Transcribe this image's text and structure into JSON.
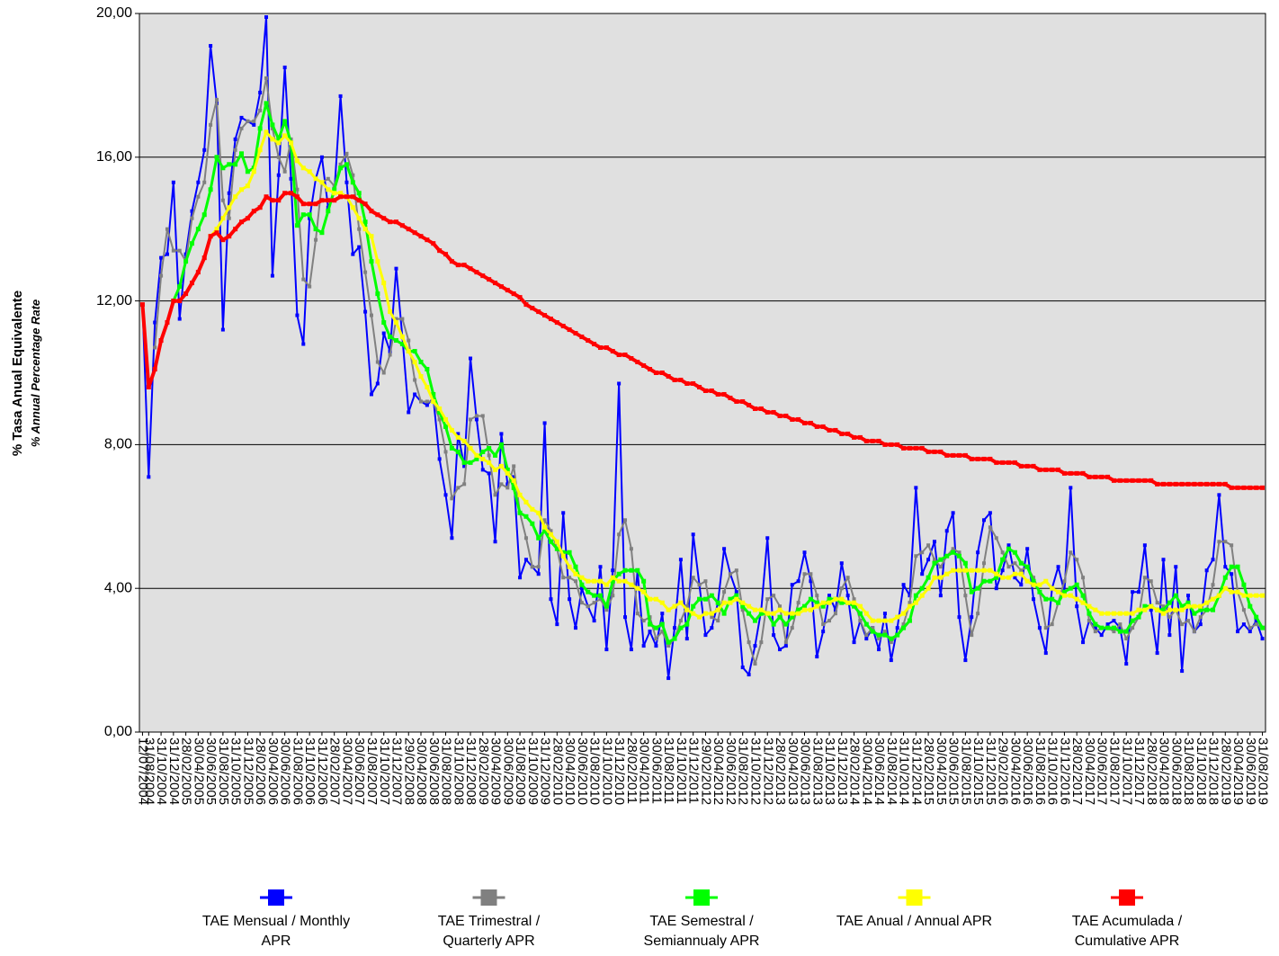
{
  "chart_data": {
    "type": "line",
    "y_label": "% Tasa Anual Equivalente",
    "y_label_sub": "% Annual Percentage Rate",
    "ylim": [
      0,
      20
    ],
    "yticks": [
      {
        "value": 0,
        "label": "0,00"
      },
      {
        "value": 4,
        "label": "4,00"
      },
      {
        "value": 8,
        "label": "8,00"
      },
      {
        "value": 12,
        "label": "12,00"
      },
      {
        "value": 16,
        "label": "16,00"
      },
      {
        "value": 20,
        "label": "20,00"
      }
    ],
    "grid": true,
    "legend": "bottom",
    "categories": [
      "12/07/2004",
      "31/08/2004",
      null,
      "31/10/2004",
      null,
      "31/12/2004",
      null,
      "28/02/2005",
      null,
      "30/04/2005",
      null,
      "30/06/2005",
      null,
      "31/08/2005",
      null,
      "31/10/2005",
      null,
      "31/12/2005",
      null,
      "28/02/2006",
      null,
      "30/04/2006",
      null,
      "30/06/2006",
      null,
      "31/08/2006",
      null,
      "31/10/2006",
      null,
      "31/12/2006",
      null,
      "28/02/2007",
      null,
      "30/04/2007",
      null,
      "30/06/2007",
      null,
      "31/08/2007",
      null,
      "31/10/2007",
      null,
      "31/12/2007",
      null,
      "29/02/2008",
      null,
      "30/04/2008",
      null,
      "30/06/2008",
      null,
      "31/08/2008",
      null,
      "31/10/2008",
      null,
      "31/12/2008",
      null,
      "28/02/2009",
      null,
      "30/04/2009",
      null,
      "30/06/2009",
      null,
      "31/08/2009",
      null,
      "31/10/2009",
      null,
      "31/12/2009",
      null,
      "28/02/2010",
      null,
      "30/04/2010",
      null,
      "30/06/2010",
      null,
      "31/08/2010",
      null,
      "31/10/2010",
      null,
      "31/12/2010",
      null,
      "28/02/2011",
      null,
      "30/04/2011",
      null,
      "30/06/2011",
      null,
      "31/08/2011",
      null,
      "31/10/2011",
      null,
      "31/12/2011",
      null,
      "29/02/2012",
      null,
      "30/04/2012",
      null,
      "30/06/2012",
      null,
      "31/08/2012",
      null,
      "31/10/2012",
      null,
      "31/12/2012",
      null,
      "28/02/2013",
      null,
      "30/04/2013",
      null,
      "30/06/2013",
      null,
      "31/08/2013",
      null,
      "31/10/2013",
      null,
      "31/12/2013",
      null,
      "28/02/2014",
      null,
      "30/04/2014",
      null,
      "30/06/2014",
      null,
      "31/08/2014",
      null,
      "31/10/2014",
      null,
      "31/12/2014",
      null,
      "28/02/2015",
      null,
      "30/04/2015",
      null,
      "30/06/2015",
      null,
      "31/08/2015",
      null,
      "31/10/2015",
      null,
      "31/12/2015",
      null,
      "29/02/2016",
      null,
      "30/04/2016",
      null,
      "30/06/2016",
      null,
      "31/08/2016",
      null,
      "31/10/2016",
      null,
      "31/12/2016",
      null,
      "28/02/2017",
      null,
      "30/04/2017",
      null,
      "30/06/2017",
      null,
      "31/08/2017",
      null,
      "31/10/2017",
      null,
      "31/12/2017",
      null,
      "28/02/2018",
      null,
      "30/04/2018",
      null,
      "30/06/2018",
      null,
      "31/08/2018",
      null,
      "31/10/2018",
      null,
      "31/12/2018",
      null,
      "28/02/2019",
      null,
      "30/04/2019",
      null,
      "30/06/2019",
      null,
      "31/08/2019"
    ],
    "series": [
      {
        "name": "TAE Mensual / Monthly APR",
        "color": "#0000ff",
        "values": [
          11.9,
          7.1,
          11.4,
          13.2,
          13.3,
          15.3,
          11.5,
          13.3,
          14.5,
          15.3,
          16.2,
          19.1,
          17.5,
          11.2,
          15.0,
          16.5,
          17.1,
          17.0,
          16.9,
          17.8,
          19.9,
          12.7,
          15.5,
          18.5,
          15.4,
          11.6,
          10.8,
          14.3,
          15.4,
          16.0,
          14.6,
          15.0,
          17.7,
          15.3,
          13.3,
          13.5,
          11.7,
          9.4,
          9.7,
          11.1,
          10.6,
          12.9,
          11.0,
          8.9,
          9.4,
          9.2,
          9.1,
          9.3,
          7.6,
          6.6,
          5.4,
          8.3,
          7.4,
          10.4,
          8.7,
          7.3,
          7.2,
          5.3,
          8.3,
          6.9,
          7.1,
          4.3,
          4.8,
          4.6,
          4.4,
          8.6,
          3.7,
          3.0,
          6.1,
          3.7,
          2.9,
          4.0,
          3.5,
          3.1,
          4.6,
          2.3,
          4.5,
          9.7,
          3.2,
          2.3,
          4.5,
          2.4,
          2.8,
          2.4,
          3.3,
          1.5,
          2.9,
          4.8,
          2.6,
          5.5,
          4.1,
          2.7,
          2.9,
          3.6,
          5.1,
          4.4,
          3.9,
          1.8,
          1.6,
          2.4,
          3.4,
          5.4,
          2.7,
          2.3,
          2.4,
          4.1,
          4.2,
          5.0,
          4.2,
          2.1,
          2.8,
          3.8,
          3.4,
          4.7,
          3.8,
          2.5,
          3.1,
          2.6,
          2.9,
          2.3,
          3.3,
          2.0,
          2.9,
          4.1,
          3.8,
          6.8,
          4.4,
          4.8,
          5.3,
          3.8,
          5.6,
          6.1,
          3.2,
          2.0,
          3.2,
          5.0,
          5.9,
          6.1,
          4.0,
          4.5,
          5.2,
          4.3,
          4.1,
          5.1,
          3.7,
          2.9,
          2.2,
          4.0,
          4.6,
          3.9,
          6.8,
          3.5,
          2.5,
          3.1,
          2.9,
          2.7,
          3.0,
          3.1,
          2.9,
          1.9,
          3.9,
          3.9,
          5.2,
          3.4,
          2.2,
          4.8,
          2.7,
          4.6,
          1.7,
          3.8,
          2.8,
          3.0,
          4.5,
          4.8,
          6.6,
          4.6,
          4.4,
          2.8,
          3.0,
          2.8,
          3.1,
          2.6
        ]
      },
      {
        "name": "TAE Trimestral / Quarterly APR",
        "color": "#808080",
        "values": [
          null,
          null,
          10.7,
          12.7,
          14.0,
          13.4,
          13.4,
          13.1,
          14.3,
          14.9,
          15.3,
          16.9,
          17.6,
          14.8,
          14.3,
          16.2,
          16.8,
          17.0,
          17.0,
          17.3,
          18.2,
          16.8,
          16.0,
          15.6,
          16.5,
          15.1,
          12.6,
          12.4,
          13.7,
          15.3,
          15.4,
          15.2,
          15.8,
          16.1,
          15.5,
          14.0,
          12.8,
          11.6,
          10.3,
          10.0,
          10.5,
          11.5,
          11.5,
          10.9,
          9.8,
          9.2,
          9.2,
          9.2,
          8.7,
          7.8,
          6.5,
          6.8,
          6.9,
          8.7,
          8.8,
          8.8,
          7.7,
          6.6,
          6.9,
          6.8,
          7.4,
          6.1,
          5.4,
          4.6,
          4.6,
          5.9,
          5.6,
          5.1,
          4.3,
          4.3,
          4.2,
          3.6,
          3.5,
          3.6,
          3.7,
          3.4,
          3.8,
          5.5,
          5.9,
          5.1,
          3.3,
          3.1,
          3.2,
          2.6,
          2.8,
          2.4,
          2.6,
          3.1,
          3.5,
          4.3,
          4.1,
          4.2,
          3.2,
          3.1,
          3.9,
          4.4,
          4.5,
          3.4,
          2.5,
          1.9,
          2.5,
          3.7,
          3.8,
          3.5,
          2.5,
          2.9,
          3.6,
          4.4,
          4.4,
          3.8,
          3.0,
          3.1,
          3.3,
          4.0,
          4.3,
          3.7,
          3.1,
          2.7,
          2.9,
          2.6,
          2.8,
          2.5,
          2.7,
          3.0,
          3.6,
          4.9,
          5.0,
          5.2,
          4.8,
          4.6,
          4.9,
          5.1,
          5.0,
          3.8,
          2.7,
          3.3,
          4.7,
          5.7,
          5.4,
          5.0,
          4.6,
          4.7,
          4.5,
          4.6,
          4.3,
          3.9,
          2.9,
          3.0,
          3.6,
          4.2,
          5.0,
          4.8,
          4.3,
          3.1,
          2.8,
          2.9,
          2.9,
          2.8,
          3.0,
          2.6,
          2.9,
          3.2,
          4.3,
          4.2,
          3.6,
          3.5,
          3.2,
          3.4,
          3.0,
          3.1,
          2.8,
          3.2,
          3.4,
          4.1,
          5.3,
          5.3,
          5.2,
          3.9,
          3.4,
          2.9,
          3.0,
          2.9
        ]
      },
      {
        "name": "TAE Semestral / Semiannualy APR",
        "color": "#00ff00",
        "values": [
          null,
          null,
          null,
          null,
          null,
          12.0,
          12.4,
          13.1,
          13.6,
          14.0,
          14.4,
          15.1,
          16.0,
          15.7,
          15.8,
          15.8,
          16.1,
          15.6,
          15.7,
          16.8,
          17.5,
          16.9,
          16.5,
          17.0,
          16.4,
          14.1,
          14.4,
          14.4,
          14.0,
          13.9,
          14.5,
          15.1,
          15.7,
          15.8,
          15.3,
          15.0,
          14.2,
          13.1,
          12.2,
          11.4,
          11.0,
          10.9,
          10.8,
          10.6,
          10.6,
          10.3,
          10.1,
          9.4,
          8.9,
          8.5,
          7.9,
          7.8,
          7.5,
          7.5,
          7.6,
          7.8,
          7.9,
          7.7,
          8.0,
          7.3,
          6.8,
          6.1,
          6.0,
          5.8,
          5.4,
          5.6,
          5.3,
          5.1,
          5.0,
          5.0,
          4.6,
          4.1,
          3.9,
          3.8,
          3.8,
          3.5,
          4.2,
          4.4,
          4.5,
          4.5,
          4.5,
          4.2,
          3.0,
          2.9,
          3.0,
          2.5,
          2.6,
          2.9,
          3.0,
          3.5,
          3.7,
          3.7,
          3.8,
          3.6,
          3.3,
          3.7,
          3.8,
          3.5,
          3.3,
          3.1,
          3.3,
          3.3,
          3.0,
          3.2,
          3.0,
          3.2,
          3.4,
          3.5,
          3.7,
          3.6,
          3.5,
          3.7,
          3.7,
          3.6,
          3.6,
          3.5,
          3.3,
          3.0,
          2.8,
          2.7,
          2.7,
          2.6,
          2.7,
          2.9,
          3.1,
          3.8,
          4.0,
          4.3,
          4.7,
          4.8,
          4.9,
          5.0,
          4.9,
          4.7,
          3.9,
          4.0,
          4.2,
          4.2,
          4.3,
          4.8,
          5.1,
          5.0,
          4.7,
          4.6,
          4.2,
          3.9,
          3.7,
          3.7,
          3.6,
          3.9,
          4.0,
          4.1,
          3.8,
          3.3,
          3.0,
          2.9,
          2.9,
          2.9,
          2.8,
          2.8,
          3.1,
          3.2,
          3.5,
          3.5,
          3.4,
          3.4,
          3.6,
          3.8,
          3.5,
          3.6,
          3.3,
          3.4,
          3.4,
          3.4,
          3.8,
          4.3,
          4.6,
          4.6,
          4.1,
          3.5,
          3.2,
          2.9
        ]
      },
      {
        "name": "TAE Anual / Annual APR",
        "color": "#ffff00",
        "values": [
          null,
          null,
          null,
          null,
          null,
          null,
          null,
          null,
          null,
          null,
          null,
          13.8,
          14.0,
          14.3,
          14.6,
          14.9,
          15.1,
          15.2,
          15.6,
          16.2,
          16.7,
          16.5,
          16.4,
          16.6,
          16.4,
          15.9,
          15.7,
          15.6,
          15.4,
          15.3,
          15.1,
          15.0,
          15.0,
          14.9,
          14.6,
          14.3,
          14.0,
          13.8,
          13.1,
          12.5,
          11.7,
          11.4,
          11.0,
          10.6,
          10.3,
          9.9,
          9.6,
          9.2,
          9.0,
          8.7,
          8.4,
          8.2,
          8.1,
          7.9,
          7.7,
          7.6,
          7.5,
          7.3,
          7.4,
          7.2,
          7.0,
          6.6,
          6.4,
          6.2,
          6.1,
          5.7,
          5.5,
          5.3,
          4.9,
          4.6,
          4.4,
          4.3,
          4.2,
          4.2,
          4.2,
          4.1,
          4.3,
          4.2,
          4.2,
          4.1,
          4.0,
          3.9,
          3.7,
          3.7,
          3.6,
          3.4,
          3.5,
          3.6,
          3.4,
          3.3,
          3.2,
          3.3,
          3.3,
          3.4,
          3.6,
          3.6,
          3.7,
          3.6,
          3.5,
          3.4,
          3.4,
          3.3,
          3.3,
          3.4,
          3.3,
          3.3,
          3.3,
          3.4,
          3.4,
          3.5,
          3.6,
          3.6,
          3.7,
          3.7,
          3.6,
          3.6,
          3.5,
          3.3,
          3.1,
          3.1,
          3.1,
          3.1,
          3.2,
          3.3,
          3.5,
          3.6,
          3.8,
          4.0,
          4.3,
          4.3,
          4.4,
          4.5,
          4.5,
          4.5,
          4.5,
          4.5,
          4.5,
          4.5,
          4.4,
          4.3,
          4.3,
          4.4,
          4.4,
          4.2,
          4.1,
          4.1,
          4.2,
          4.0,
          3.9,
          3.8,
          3.8,
          3.7,
          3.6,
          3.5,
          3.4,
          3.3,
          3.3,
          3.3,
          3.3,
          3.3,
          3.3,
          3.4,
          3.4,
          3.5,
          3.4,
          3.3,
          3.4,
          3.4,
          3.4,
          3.5,
          3.5,
          3.5,
          3.6,
          3.7,
          3.8,
          4.0,
          3.9,
          3.9,
          3.8,
          3.8,
          3.8,
          3.8
        ]
      },
      {
        "name": "TAE Acumulada / Cumulative APR",
        "color": "#ff0000",
        "values": [
          11.9,
          9.6,
          10.1,
          10.9,
          11.4,
          12.0,
          12.0,
          12.2,
          12.5,
          12.8,
          13.2,
          13.8,
          13.9,
          13.7,
          13.8,
          14.0,
          14.2,
          14.3,
          14.5,
          14.6,
          14.9,
          14.8,
          14.8,
          15.0,
          15.0,
          14.9,
          14.7,
          14.7,
          14.7,
          14.8,
          14.8,
          14.8,
          14.9,
          14.9,
          14.9,
          14.8,
          14.7,
          14.5,
          14.4,
          14.3,
          14.2,
          14.2,
          14.1,
          14.0,
          13.9,
          13.8,
          13.7,
          13.6,
          13.4,
          13.3,
          13.1,
          13.0,
          13.0,
          12.9,
          12.8,
          12.7,
          12.6,
          12.5,
          12.4,
          12.3,
          12.2,
          12.1,
          11.9,
          11.8,
          11.7,
          11.6,
          11.5,
          11.4,
          11.3,
          11.2,
          11.1,
          11.0,
          10.9,
          10.8,
          10.7,
          10.7,
          10.6,
          10.5,
          10.5,
          10.4,
          10.3,
          10.2,
          10.1,
          10.0,
          10.0,
          9.9,
          9.8,
          9.8,
          9.7,
          9.7,
          9.6,
          9.5,
          9.5,
          9.4,
          9.4,
          9.3,
          9.2,
          9.2,
          9.1,
          9.0,
          9.0,
          8.9,
          8.9,
          8.8,
          8.8,
          8.7,
          8.7,
          8.6,
          8.6,
          8.5,
          8.5,
          8.4,
          8.4,
          8.3,
          8.3,
          8.2,
          8.2,
          8.1,
          8.1,
          8.1,
          8.0,
          8.0,
          8.0,
          7.9,
          7.9,
          7.9,
          7.9,
          7.8,
          7.8,
          7.8,
          7.7,
          7.7,
          7.7,
          7.7,
          7.6,
          7.6,
          7.6,
          7.6,
          7.5,
          7.5,
          7.5,
          7.5,
          7.4,
          7.4,
          7.4,
          7.3,
          7.3,
          7.3,
          7.3,
          7.2,
          7.2,
          7.2,
          7.2,
          7.1,
          7.1,
          7.1,
          7.1,
          7.0,
          7.0,
          7.0,
          7.0,
          7.0,
          7.0,
          7.0,
          6.9,
          6.9,
          6.9,
          6.9,
          6.9,
          6.9,
          6.9,
          6.9,
          6.9,
          6.9,
          6.9,
          6.9,
          6.8,
          6.8,
          6.8,
          6.8,
          6.8,
          6.8
        ]
      }
    ]
  }
}
